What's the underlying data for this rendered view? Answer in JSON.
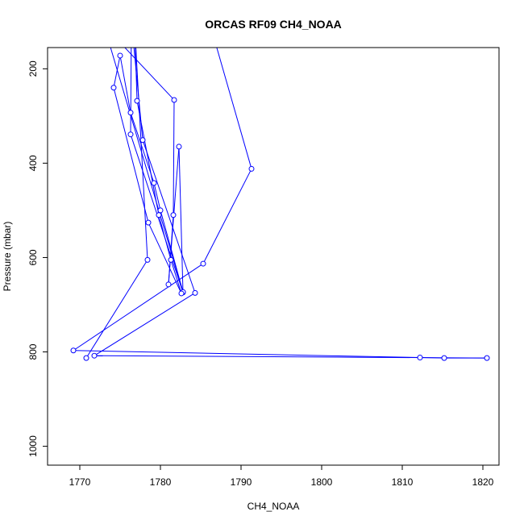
{
  "chart_data": {
    "type": "line",
    "title": "ORCAS RF09 CH4_NOAA",
    "xlabel": "CH4_NOAA",
    "ylabel": "Pressure (mbar)",
    "xlim": [
      1766,
      1822
    ],
    "ylim": [
      1040,
      155
    ],
    "y_reversed": true,
    "xticks": [
      1770,
      1780,
      1790,
      1800,
      1810,
      1820
    ],
    "yticks": [
      200,
      400,
      600,
      800,
      1000
    ],
    "grid": false,
    "legend": "none",
    "series": [
      {
        "color": "#0000ff",
        "marker": "open-circle",
        "points": [
          {
            "x": 1786.2,
            "y": 108
          },
          {
            "x": 1791.3,
            "y": 412
          },
          {
            "x": 1785.3,
            "y": 613
          },
          {
            "x": 1769.2,
            "y": 797
          },
          {
            "x": 1812.2,
            "y": 812
          },
          {
            "x": 1815.2,
            "y": 813
          },
          {
            "x": 1820.5,
            "y": 813
          },
          {
            "x": 1771.8,
            "y": 808
          },
          {
            "x": 1784.3,
            "y": 675
          },
          {
            "x": 1777.8,
            "y": 351
          },
          {
            "x": 1776.4,
            "y": 98
          },
          {
            "x": 1776.3,
            "y": 339
          },
          {
            "x": 1782.8,
            "y": 674
          },
          {
            "x": 1782.3,
            "y": 365
          },
          {
            "x": 1781.0,
            "y": 657
          },
          {
            "x": 1781.6,
            "y": 510
          },
          {
            "x": 1781.7,
            "y": 266
          },
          {
            "x": 1773.0,
            "y": 108
          },
          {
            "x": 1782.8,
            "y": 673
          },
          {
            "x": 1780.0,
            "y": 500
          },
          {
            "x": 1779.2,
            "y": 442
          },
          {
            "x": 1776.3,
            "y": 293
          },
          {
            "x": 1775.0,
            "y": 172
          },
          {
            "x": 1774.2,
            "y": 240
          },
          {
            "x": 1778.5,
            "y": 526
          },
          {
            "x": 1782.6,
            "y": 676
          },
          {
            "x": 1781.3,
            "y": 605
          },
          {
            "x": 1779.8,
            "y": 510
          },
          {
            "x": 1777.1,
            "y": 268
          },
          {
            "x": 1776.8,
            "y": 108
          },
          {
            "x": 1778.4,
            "y": 605
          },
          {
            "x": 1770.8,
            "y": 813
          }
        ]
      }
    ]
  }
}
